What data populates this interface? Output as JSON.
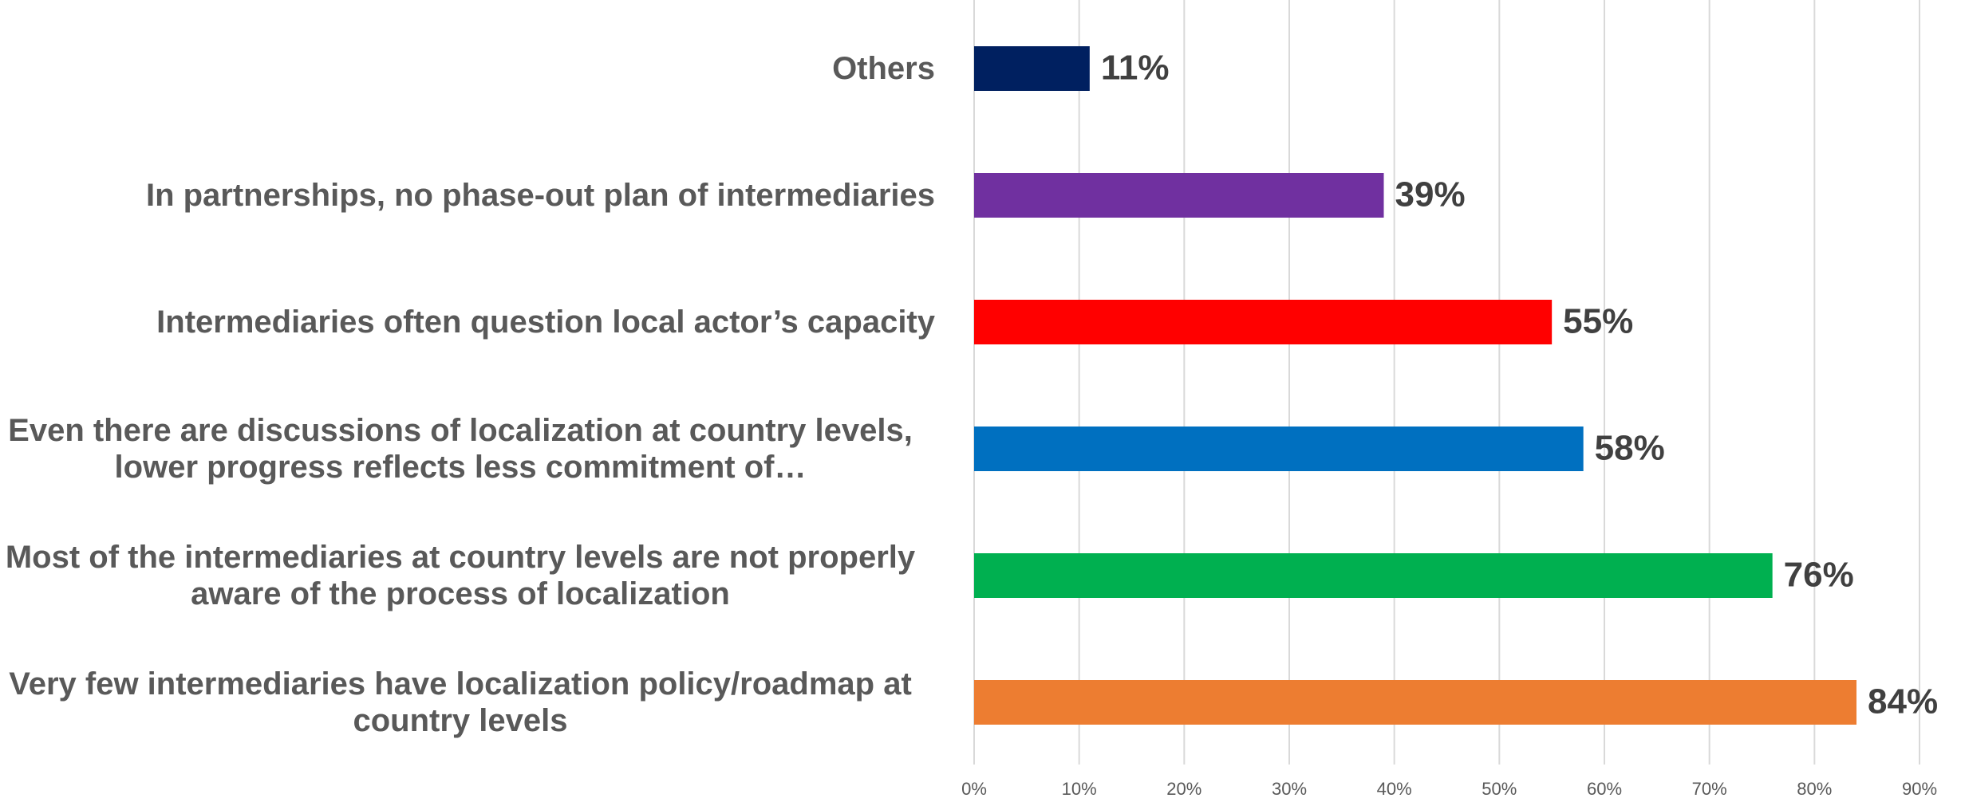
{
  "chart_data": {
    "type": "bar",
    "orientation": "horizontal",
    "categories": [
      "Others",
      "In partnerships, no phase-out plan of intermediaries",
      "Intermediaries often question local actor’s capacity",
      "Even there are discussions of localization at country levels, lower progress reflects less commitment of…",
      "Most of the intermediaries at country levels are not properly aware of the process of localization",
      "Very few intermediaries have localization policy/roadmap at country levels"
    ],
    "values": [
      11,
      39,
      55,
      58,
      76,
      84
    ],
    "value_labels": [
      "11%",
      "39%",
      "55%",
      "58%",
      "76%",
      "84%"
    ],
    "colors": [
      "#002060",
      "#7030a0",
      "#ff0000",
      "#0070c0",
      "#00b050",
      "#ed7d31"
    ],
    "xlim": [
      0,
      90
    ],
    "xticks": [
      {
        "value": 0,
        "label": "0%"
      },
      {
        "value": 10,
        "label": "10%"
      },
      {
        "value": 20,
        "label": "20%"
      },
      {
        "value": 30,
        "label": "30%"
      },
      {
        "value": 40,
        "label": "40%"
      },
      {
        "value": 50,
        "label": "50%"
      },
      {
        "value": 60,
        "label": "60%"
      },
      {
        "value": 70,
        "label": "70%"
      },
      {
        "value": 80,
        "label": "80%"
      },
      {
        "value": 90,
        "label": "90%"
      }
    ],
    "grid": true
  }
}
